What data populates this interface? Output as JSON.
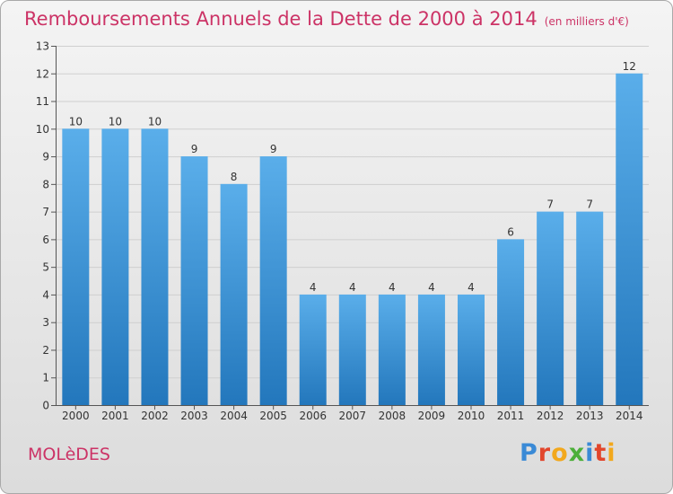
{
  "header": {
    "title": "Remboursements Annuels de la Dette de 2000 à 2014",
    "subtitle": "(en milliers d'€)"
  },
  "footer": {
    "commune": "MOLèDES",
    "logo_text": "Proxiti"
  },
  "colors": {
    "title": "#cc3366",
    "bar_light": "#5aaeea",
    "bar_dark": "#2377bc",
    "logo": [
      "#3a8ad6",
      "#e2462c",
      "#f2a81d",
      "#4caf3a",
      "#3a8ad6",
      "#e2462c",
      "#f2a81d"
    ]
  },
  "chart_data": {
    "type": "bar",
    "title": "Remboursements Annuels de la Dette de 2000 à 2014",
    "subtitle": "(en milliers d'€)",
    "categories": [
      "2000",
      "2001",
      "2002",
      "2003",
      "2004",
      "2005",
      "2006",
      "2007",
      "2008",
      "2009",
      "2010",
      "2011",
      "2012",
      "2013",
      "2014"
    ],
    "values": [
      10,
      10,
      10,
      9,
      8,
      9,
      4,
      4,
      4,
      4,
      4,
      6,
      7,
      7,
      12
    ],
    "ylim": [
      0,
      13
    ],
    "yticks": [
      0,
      1,
      2,
      3,
      4,
      5,
      6,
      7,
      8,
      9,
      10,
      11,
      12,
      13
    ],
    "grid": true,
    "data_labels": true,
    "xlabel": "",
    "ylabel": ""
  }
}
